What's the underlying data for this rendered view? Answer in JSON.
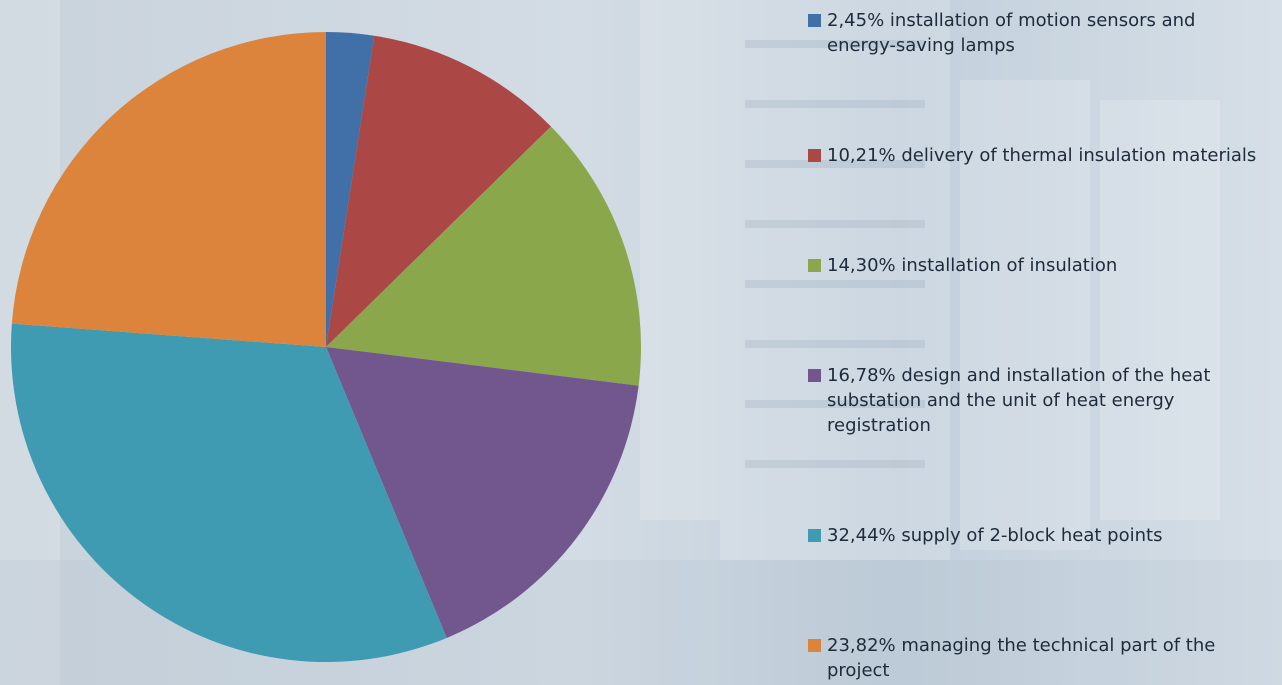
{
  "chart_data": {
    "type": "pie",
    "categories": [
      "2,45% installation of motion sensors and energy-saving lamps",
      "10,21% delivery of thermal insulation materials",
      "14,30% installation of insulation",
      "16,78% design and installation of the heat substation and the unit of heat energy registration",
      "32,44% supply of 2-block heat points",
      "23,82% managing the technical part of the project"
    ],
    "values": [
      2.45,
      10.21,
      14.3,
      16.78,
      32.44,
      23.82
    ],
    "colors": [
      "#4170a8",
      "#ab4744",
      "#8ba74c",
      "#72578f",
      "#3f9bb2",
      "#dc843c"
    ],
    "legend": "right"
  }
}
